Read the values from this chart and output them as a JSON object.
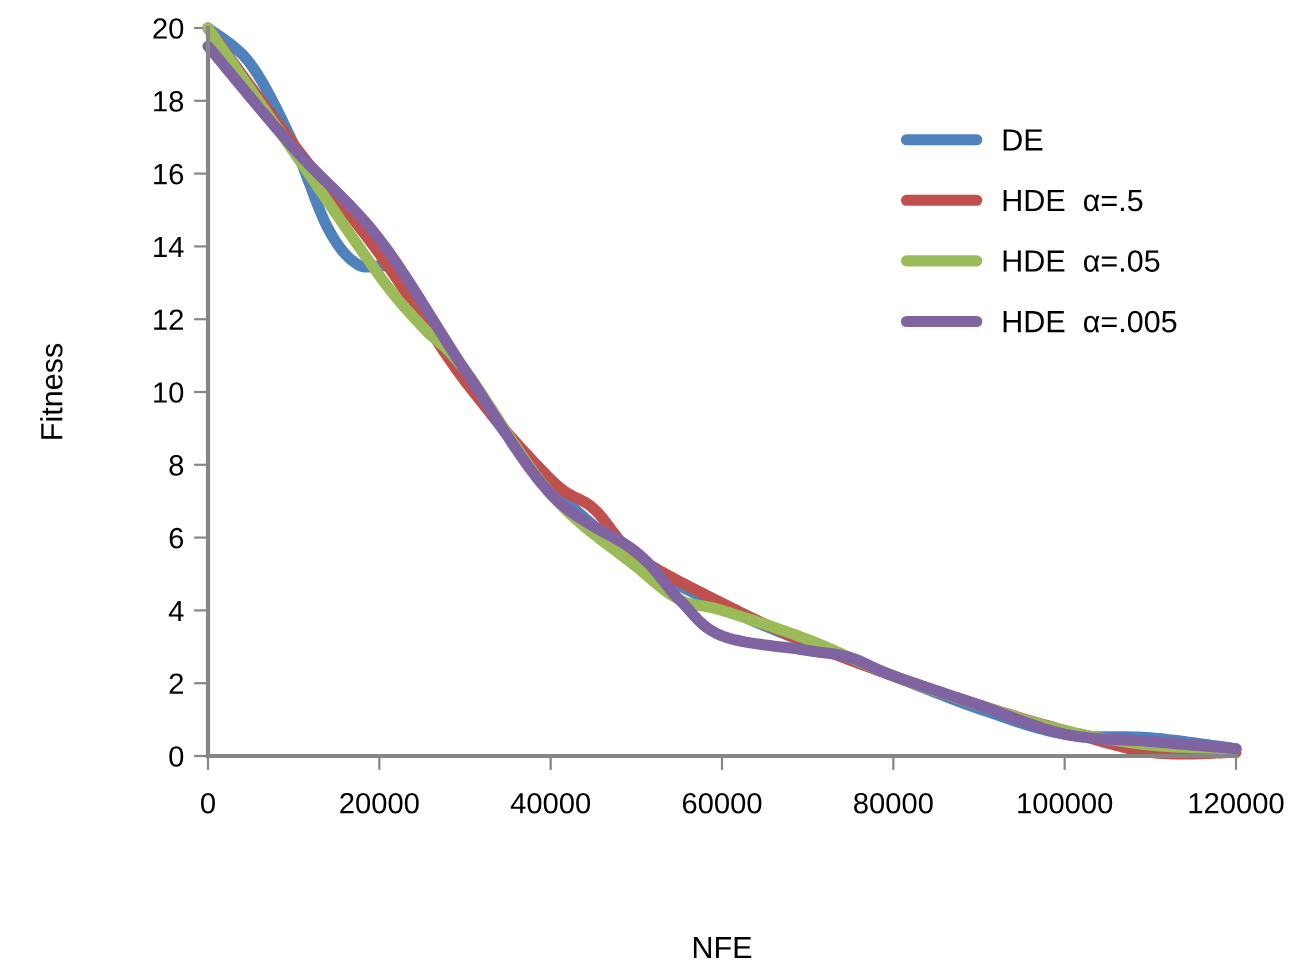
{
  "chart_data": {
    "type": "line",
    "xlabel": "NFE",
    "ylabel": "Fitness",
    "xlim": [
      0,
      120000
    ],
    "xticks": [
      0,
      20000,
      40000,
      60000,
      80000,
      100000,
      120000
    ],
    "ylim": [
      0,
      20
    ],
    "yticks": [
      0,
      2,
      4,
      6,
      8,
      10,
      12,
      14,
      16,
      18,
      20
    ],
    "grid": false,
    "legend": "top right",
    "marker": "none",
    "line_style": "solid",
    "series": [
      {
        "name": "DE",
        "color": "#4f81bd",
        "x": [
          0,
          5000,
          10000,
          14000,
          17500,
          21500,
          25000,
          30000,
          35000,
          40000,
          50000,
          60000,
          70000,
          80000,
          90000,
          100000,
          110000,
          120000
        ],
        "values": [
          20,
          19,
          16.8,
          14.5,
          13.5,
          13.4,
          12.4,
          10.4,
          8.8,
          7.4,
          5.4,
          4.1,
          3.1,
          2.2,
          1.3,
          0.6,
          0.5,
          0.2
        ]
      },
      {
        "name": "HDE  α=.5",
        "color": "#c0504d",
        "x": [
          0,
          10000,
          20000,
          30000,
          40000,
          45000,
          50000,
          60000,
          70000,
          80000,
          90000,
          100000,
          110000,
          120000
        ],
        "values": [
          20,
          16.8,
          13.8,
          10.3,
          7.6,
          6.8,
          5.5,
          4.2,
          3.1,
          2.2,
          1.4,
          0.7,
          0.1,
          0.1
        ]
      },
      {
        "name": "HDE  α=.05",
        "color": "#9bbb59",
        "x": [
          0,
          10000,
          20000,
          25000,
          30000,
          40000,
          50000,
          55000,
          60000,
          70000,
          80000,
          90000,
          100000,
          110000,
          120000
        ],
        "values": [
          20,
          16.6,
          13.2,
          11.8,
          10.6,
          7.2,
          5.2,
          4.3,
          4.0,
          3.2,
          2.2,
          1.4,
          0.7,
          0.3,
          0.2
        ]
      },
      {
        "name": "HDE  α=.005",
        "color": "#8064a2",
        "x": [
          0,
          10000,
          20000,
          30000,
          40000,
          50000,
          55000,
          60000,
          70000,
          75000,
          80000,
          90000,
          100000,
          110000,
          120000
        ],
        "values": [
          19.5,
          16.7,
          14.2,
          10.6,
          7.2,
          5.6,
          4.3,
          3.3,
          2.9,
          2.7,
          2.2,
          1.4,
          0.6,
          0.4,
          0.2
        ]
      }
    ]
  }
}
